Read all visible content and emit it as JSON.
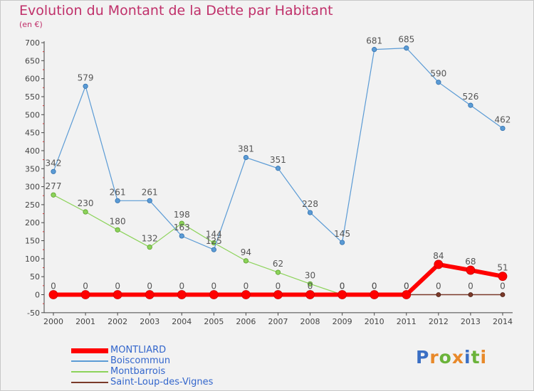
{
  "header": {
    "title": "Evolution du Montant de la Dette par Habitant",
    "unit": "(en €)"
  },
  "logo": {
    "text": "Proxiti",
    "letters": [
      {
        "ch": "P",
        "color": "#3a6fc4"
      },
      {
        "ch": "r",
        "color": "#e8892a"
      },
      {
        "ch": "o",
        "color": "#6bb33a"
      },
      {
        "ch": "x",
        "color": "#e8892a"
      },
      {
        "ch": "i",
        "color": "#3a6fc4"
      },
      {
        "ch": "t",
        "color": "#6bb33a"
      },
      {
        "ch": "i",
        "color": "#e8892a"
      }
    ]
  },
  "chart_data": {
    "type": "line",
    "title": "Evolution du Montant de la Dette par Habitant",
    "ylabel": "(en €)",
    "xlabel": "",
    "ylim": [
      -50,
      700
    ],
    "yticks": [
      -50,
      0,
      50,
      100,
      150,
      200,
      250,
      300,
      350,
      400,
      450,
      500,
      550,
      600,
      650,
      700
    ],
    "x": [
      "2000",
      "2001",
      "2002",
      "2003",
      "2004",
      "2005",
      "2006",
      "2007",
      "2008",
      "2009",
      "2010",
      "2011",
      "2012",
      "2013",
      "2014"
    ],
    "grid": false,
    "legend_position": "bottom-left",
    "series": [
      {
        "name": "Saint-Loup-des-Vignes",
        "color": "#7a3a2a",
        "values": [
          0,
          0,
          0,
          0,
          0,
          0,
          0,
          0,
          0,
          0,
          0,
          0,
          0,
          0,
          0
        ],
        "labels": [
          "",
          "",
          "",
          "",
          "",
          "",
          "",
          "",
          "",
          "",
          "",
          "",
          "0",
          "0",
          "0"
        ]
      },
      {
        "name": "Montbarrois",
        "color": "#8cd35a",
        "values": [
          277,
          230,
          180,
          132,
          198,
          144,
          94,
          62,
          30,
          0,
          0,
          0,
          null,
          null,
          null
        ],
        "labels": [
          "277",
          "230",
          "180",
          "132",
          "198",
          "144",
          "94",
          "62",
          "30",
          "0",
          "0",
          "0",
          "",
          "",
          ""
        ]
      },
      {
        "name": "Boiscommun",
        "color": "#5b9bd5",
        "values": [
          342,
          579,
          261,
          261,
          163,
          125,
          381,
          351,
          228,
          145,
          681,
          685,
          590,
          526,
          462
        ],
        "labels": [
          "342",
          "579",
          "261",
          "261",
          "163",
          "125",
          "381",
          "351",
          "228",
          "145",
          "681",
          "685",
          "590",
          "526",
          "462"
        ]
      },
      {
        "name": "MONTLIARD",
        "color": "#ff0000",
        "values": [
          0,
          0,
          0,
          0,
          0,
          0,
          0,
          0,
          0,
          0,
          0,
          0,
          84,
          68,
          51
        ],
        "labels": [
          "0",
          "0",
          "0",
          "0",
          "0",
          "0",
          "0",
          "0",
          "0",
          "0",
          "0",
          "0",
          "84",
          "68",
          "51"
        ]
      }
    ]
  }
}
